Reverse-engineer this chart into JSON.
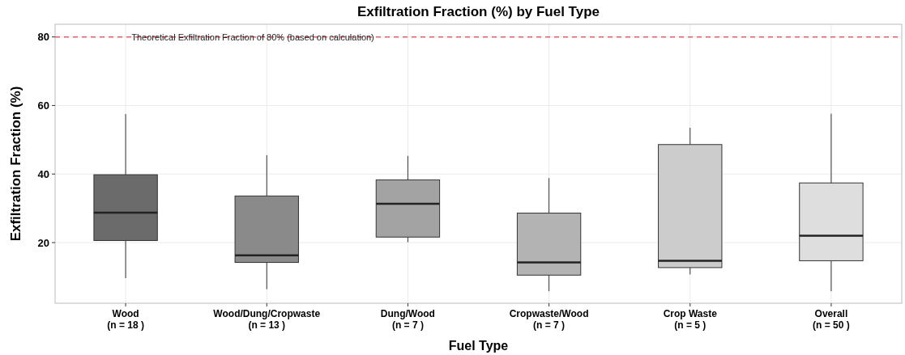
{
  "chart_data": {
    "type": "box",
    "title": "Exfiltration Fraction (%) by Fuel Type",
    "xlabel": "Fuel Type",
    "ylabel": "Exfiltration Fraction (%)",
    "categories": [
      "Wood\n(n =  18 )",
      "Wood/Dung/Cropwaste\n(n =  13 )",
      "Dung/Wood\n(n =  7 )",
      "Cropwaste/Wood\n(n =  7 )",
      "Crop Waste\n(n =  5 )",
      "Overall\n(n =  50 )"
    ],
    "colors": [
      "#6b6b6b",
      "#8a8a8a",
      "#a3a3a3",
      "#b3b3b3",
      "#cccccc",
      "#dedede"
    ],
    "boxes": [
      {
        "low": 9.6,
        "q1": 20.6,
        "median": 28.7,
        "q3": 39.8,
        "high": 57.5
      },
      {
        "low": 6.4,
        "q1": 14.2,
        "median": 16.3,
        "q3": 33.6,
        "high": 45.5
      },
      {
        "low": 20.1,
        "q1": 21.6,
        "median": 31.3,
        "q3": 38.3,
        "high": 45.3
      },
      {
        "low": 5.8,
        "q1": 10.5,
        "median": 14.2,
        "q3": 28.6,
        "high": 38.8
      },
      {
        "low": 10.7,
        "q1": 12.7,
        "median": 14.7,
        "q3": 48.6,
        "high": 53.5
      },
      {
        "low": 5.8,
        "q1": 14.7,
        "median": 22.0,
        "q3": 37.4,
        "high": 57.6
      }
    ],
    "ylim": [
      2.3,
      83.7
    ],
    "yticks": [
      20,
      40,
      60,
      80
    ],
    "grid": true,
    "ref_lines": [
      {
        "axis": "y",
        "value": 80,
        "label": "Theoretical Exfiltration Fraction of 80% (based on calculation)",
        "color": "#e0606a",
        "line_style": "dashed"
      }
    ]
  }
}
